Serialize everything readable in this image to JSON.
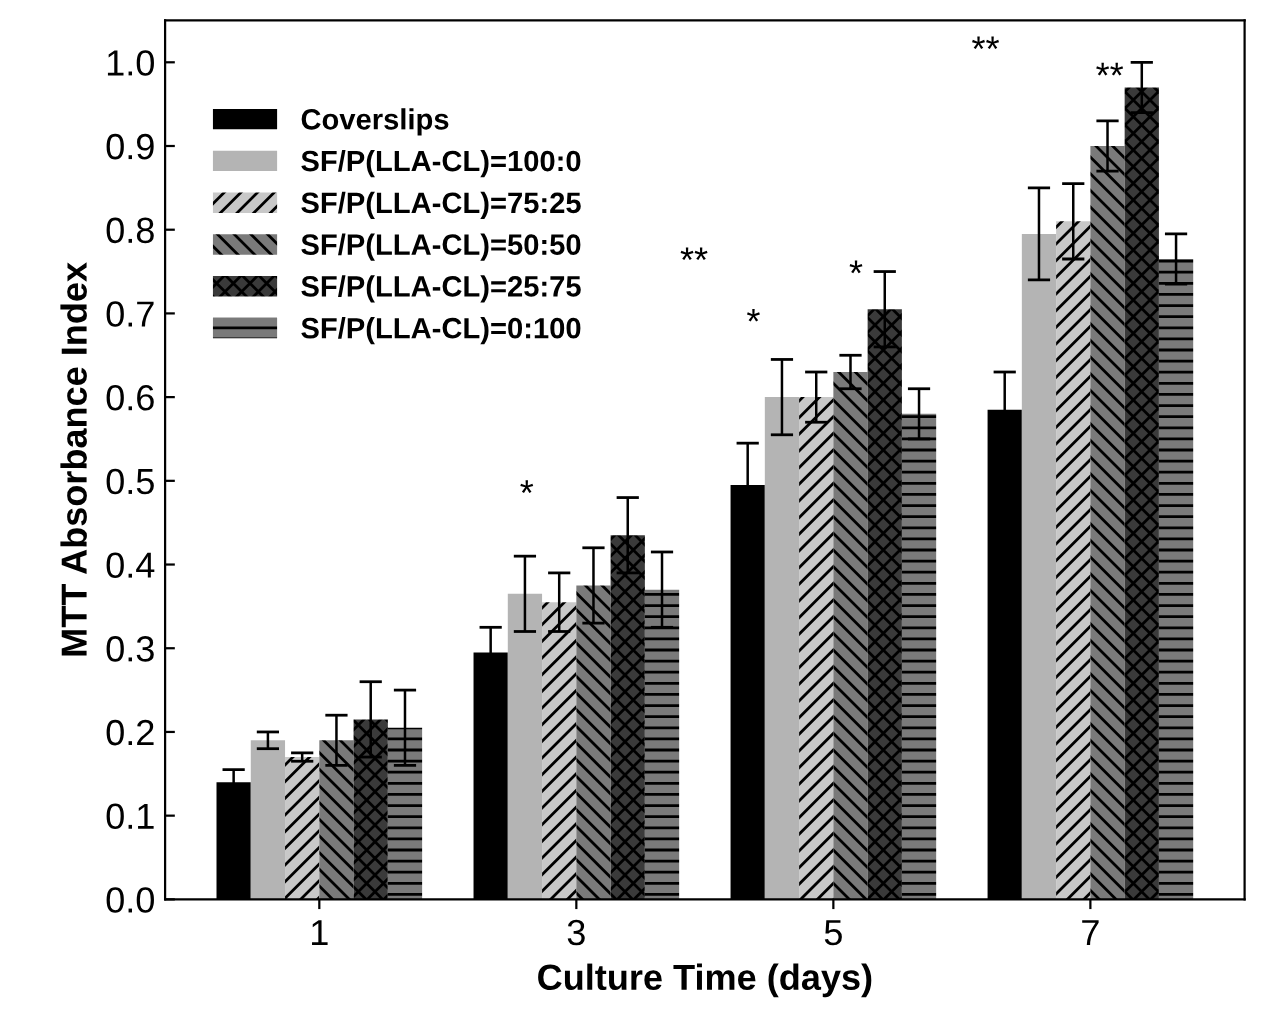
{
  "chart_data": {
    "type": "bar",
    "xlabel": "Culture Time (days)",
    "ylabel": "MTT Absorbance Index",
    "categories": [
      "1",
      "3",
      "5",
      "7"
    ],
    "series": [
      {
        "name": "Coverslips",
        "color": "#000000",
        "values": [
          0.14,
          0.295,
          0.495,
          0.585
        ],
        "errors": [
          0.015,
          0.03,
          0.05,
          0.045
        ]
      },
      {
        "name": "SF/P(LLA-CL)=100:0",
        "color": "#b4b4b4",
        "values": [
          0.19,
          0.365,
          0.6,
          0.795
        ],
        "errors": [
          0.01,
          0.045,
          0.045,
          0.055
        ]
      },
      {
        "name": "SF/P(LLA-CL)=75:25",
        "color": "#c8c8c8",
        "values": [
          0.17,
          0.355,
          0.6,
          0.81
        ],
        "errors": [
          0.005,
          0.035,
          0.03,
          0.045
        ]
      },
      {
        "name": "SF/P(LLA-CL)=50:50",
        "color": "#7a7a7a",
        "values": [
          0.19,
          0.375,
          0.63,
          0.9
        ],
        "errors": [
          0.03,
          0.045,
          0.02,
          0.03
        ]
      },
      {
        "name": "SF/P(LLA-CL)=25:75",
        "color": "#3a3a3a",
        "values": [
          0.215,
          0.435,
          0.705,
          0.97
        ],
        "errors": [
          0.045,
          0.045,
          0.045,
          0.03
        ]
      },
      {
        "name": "SF/P(LLA-CL)=0:100",
        "color": "#7a7a7a",
        "values": [
          0.205,
          0.37,
          0.58,
          0.765
        ],
        "errors": [
          0.045,
          0.045,
          0.03,
          0.03
        ]
      }
    ],
    "ylim": [
      0,
      1.05
    ],
    "yticks": [
      {
        "value": 0.0,
        "label": "0.0"
      },
      {
        "value": 0.1,
        "label": "0.1"
      },
      {
        "value": 0.2,
        "label": "0.2"
      },
      {
        "value": 0.3,
        "label": "0.3"
      },
      {
        "value": 0.4,
        "label": "0.4"
      },
      {
        "value": 0.5,
        "label": "0.5"
      },
      {
        "value": 0.6,
        "label": "0.6"
      },
      {
        "value": 0.7,
        "label": "0.7"
      },
      {
        "value": 0.8,
        "label": "0.8"
      },
      {
        "value": 0.9,
        "label": "0.9"
      },
      {
        "value": 1.0,
        "label": "1.0"
      }
    ],
    "annotations": [
      "*",
      "**",
      "*",
      "*",
      "**",
      "**"
    ],
    "legend": "top left",
    "grid": false
  }
}
